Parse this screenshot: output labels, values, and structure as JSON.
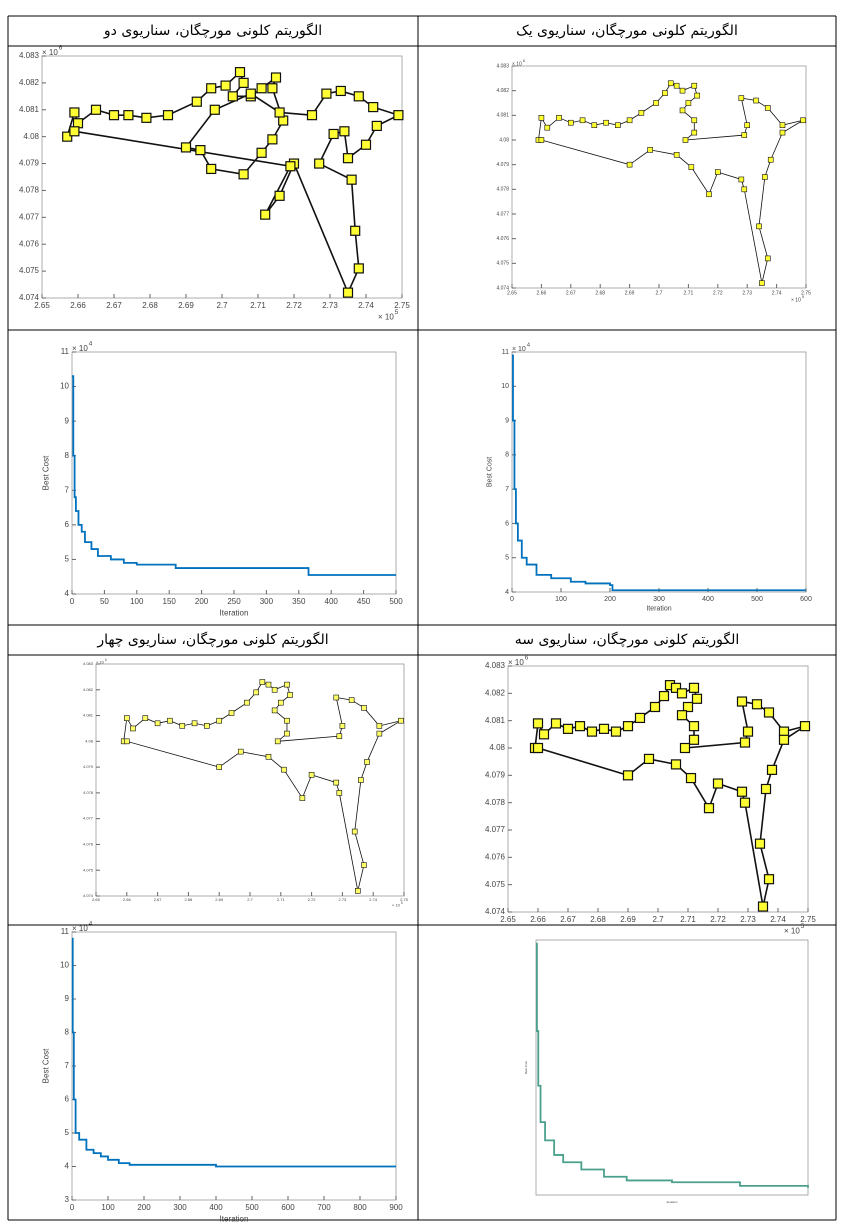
{
  "headers": [
    "الگوریتم کلونی مورچگان، سناریوی یک",
    "الگوریتم کلونی مورچگان، سناریوی دو",
    "الگوریتم کلونی مورچگان، سناریوی سه",
    "الگوریتم کلونی مورچگان، سناریوی چهار"
  ],
  "chart_data": [
    {
      "type": "scatter",
      "connected": true,
      "color": "#ffff33",
      "x": [
        2.659,
        2.66,
        2.662,
        2.666,
        2.67,
        2.674,
        2.678,
        2.682,
        2.686,
        2.69,
        2.694,
        2.699,
        2.702,
        2.704,
        2.706,
        2.708,
        2.712,
        2.713,
        2.71,
        2.708,
        2.712,
        2.712,
        2.709,
        2.729,
        2.73,
        2.728,
        2.733,
        2.737,
        2.742,
        2.749,
        2.742,
        2.738,
        2.736,
        2.734,
        2.737,
        2.735,
        2.729,
        2.728,
        2.72,
        2.717,
        2.711,
        2.706,
        2.697,
        2.69,
        2.66
      ],
      "values": [
        4.08,
        4.0809,
        4.0805,
        4.0809,
        4.0807,
        4.0808,
        4.0806,
        4.0807,
        4.0806,
        4.0808,
        4.0811,
        4.0815,
        4.0819,
        4.0823,
        4.0822,
        4.082,
        4.0822,
        4.0818,
        4.0815,
        4.0812,
        4.0808,
        4.0803,
        4.08,
        4.0802,
        4.0806,
        4.0817,
        4.0816,
        4.0813,
        4.0806,
        4.0808,
        4.0803,
        4.0792,
        4.0785,
        4.0765,
        4.0752,
        4.0742,
        4.078,
        4.0784,
        4.0787,
        4.0778,
        4.0789,
        4.0794,
        4.0796,
        4.079,
        4.08
      ],
      "xlim": [
        2.65,
        2.75
      ],
      "ylim": [
        4.074,
        4.083
      ],
      "xticks": [
        2.65,
        2.66,
        2.67,
        2.68,
        2.69,
        2.7,
        2.71,
        2.72,
        2.73,
        2.74,
        2.75
      ],
      "yticks": [
        4.074,
        4.075,
        4.076,
        4.077,
        4.078,
        4.079,
        4.08,
        4.081,
        4.082,
        4.083
      ],
      "x_scale_base": "× 10",
      "x_scale_power": "5",
      "y_scale_base": "× 10",
      "y_scale_power": "6"
    },
    {
      "type": "scatter",
      "connected": true,
      "color": "#ffff33",
      "x": [
        2.657,
        2.659,
        2.66,
        2.665,
        2.67,
        2.674,
        2.679,
        2.685,
        2.693,
        2.697,
        2.701,
        2.705,
        2.706,
        2.703,
        2.708,
        2.711,
        2.715,
        2.714,
        2.717,
        2.714,
        2.711,
        2.706,
        2.697,
        2.694,
        2.69,
        2.698,
        2.708,
        2.716,
        2.725,
        2.729,
        2.733,
        2.738,
        2.742,
        2.749,
        2.743,
        2.74,
        2.735,
        2.734,
        2.731,
        2.727,
        2.736,
        2.737,
        2.738,
        2.735,
        2.72,
        2.716,
        2.712,
        2.719,
        2.659
      ],
      "values": [
        4.08,
        4.0809,
        4.0805,
        4.081,
        4.0808,
        4.0808,
        4.0807,
        4.0808,
        4.0813,
        4.0818,
        4.0819,
        4.0824,
        4.082,
        4.0815,
        4.0815,
        4.0818,
        4.0822,
        4.0818,
        4.0806,
        4.0799,
        4.0794,
        4.0786,
        4.0788,
        4.0795,
        4.0796,
        4.081,
        4.0816,
        4.0809,
        4.0808,
        4.0816,
        4.0817,
        4.0815,
        4.0811,
        4.0808,
        4.0804,
        4.0797,
        4.0792,
        4.0802,
        4.0801,
        4.079,
        4.0784,
        4.0765,
        4.0751,
        4.0742,
        4.079,
        4.0778,
        4.0771,
        4.0789,
        4.0802
      ],
      "xlim": [
        2.65,
        2.75
      ],
      "ylim": [
        4.074,
        4.083
      ],
      "xticks": [
        2.65,
        2.66,
        2.67,
        2.68,
        2.69,
        2.7,
        2.71,
        2.72,
        2.73,
        2.74,
        2.75
      ],
      "yticks": [
        4.074,
        4.075,
        4.076,
        4.077,
        4.078,
        4.079,
        4.08,
        4.081,
        4.082,
        4.083
      ],
      "x_scale_base": "× 10",
      "x_scale_power": "5",
      "y_scale_base": "× 10",
      "y_scale_power": "6"
    },
    {
      "type": "line",
      "color": "#0072bd",
      "x_label": "Iteration",
      "y_label": "Best Cost",
      "x": [
        0,
        2,
        5,
        8,
        12,
        20,
        30,
        50,
        80,
        120,
        150,
        200,
        205,
        600
      ],
      "values": [
        10.9,
        9,
        7,
        6,
        5.5,
        5,
        4.8,
        4.5,
        4.4,
        4.3,
        4.25,
        4.2,
        4.05,
        4.05
      ],
      "xlim": [
        0,
        600
      ],
      "ylim": [
        4,
        11
      ],
      "xticks": [
        0,
        100,
        200,
        300,
        400,
        500,
        600
      ],
      "yticks": [
        4,
        5,
        6,
        7,
        8,
        9,
        10,
        11
      ],
      "y_scale_base": "× 10",
      "y_scale_power": "4"
    },
    {
      "type": "line",
      "color": "#0072bd",
      "x_label": "Iteration",
      "y_label": "Best Cost",
      "x": [
        0,
        2,
        4,
        6,
        10,
        15,
        20,
        30,
        40,
        60,
        80,
        100,
        160,
        360,
        365,
        500
      ],
      "values": [
        10.3,
        8,
        6.8,
        6.4,
        6.0,
        5.8,
        5.5,
        5.3,
        5.1,
        5.0,
        4.9,
        4.85,
        4.75,
        4.75,
        4.55,
        4.55
      ],
      "xlim": [
        0,
        500
      ],
      "ylim": [
        4,
        11
      ],
      "xticks": [
        0,
        50,
        100,
        150,
        200,
        250,
        300,
        350,
        400,
        450,
        500
      ],
      "yticks": [
        4,
        5,
        6,
        7,
        8,
        9,
        10,
        11
      ],
      "y_scale_base": "× 10",
      "y_scale_power": "4"
    },
    {
      "type": "scatter",
      "connected": true,
      "color": "#ffff33",
      "x": [
        2.659,
        2.66,
        2.662,
        2.666,
        2.67,
        2.674,
        2.678,
        2.682,
        2.686,
        2.69,
        2.694,
        2.699,
        2.702,
        2.704,
        2.706,
        2.708,
        2.712,
        2.713,
        2.71,
        2.708,
        2.712,
        2.712,
        2.709,
        2.729,
        2.73,
        2.728,
        2.733,
        2.737,
        2.742,
        2.749,
        2.742,
        2.738,
        2.736,
        2.734,
        2.737,
        2.735,
        2.729,
        2.728,
        2.72,
        2.717,
        2.711,
        2.706,
        2.697,
        2.69,
        2.66
      ],
      "values": [
        4.08,
        4.0809,
        4.0805,
        4.0809,
        4.0807,
        4.0808,
        4.0806,
        4.0807,
        4.0806,
        4.0808,
        4.0811,
        4.0815,
        4.0819,
        4.0823,
        4.0822,
        4.082,
        4.0822,
        4.0818,
        4.0815,
        4.0812,
        4.0808,
        4.0803,
        4.08,
        4.0802,
        4.0806,
        4.0817,
        4.0816,
        4.0813,
        4.0806,
        4.0808,
        4.0803,
        4.0792,
        4.0785,
        4.0765,
        4.0752,
        4.0742,
        4.078,
        4.0784,
        4.0787,
        4.0778,
        4.0789,
        4.0794,
        4.0796,
        4.079,
        4.08
      ],
      "xlim": [
        2.65,
        2.75
      ],
      "ylim": [
        4.074,
        4.083
      ],
      "xticks": [
        2.65,
        2.66,
        2.67,
        2.68,
        2.69,
        2.7,
        2.71,
        2.72,
        2.73,
        2.74,
        2.75
      ],
      "yticks": [
        4.074,
        4.075,
        4.076,
        4.077,
        4.078,
        4.079,
        4.08,
        4.081,
        4.082,
        4.083
      ],
      "x_scale_base": "× 10",
      "x_scale_power": "5",
      "y_scale_base": "× 10",
      "y_scale_power": "6"
    },
    {
      "type": "scatter",
      "connected": true,
      "color": "#ffff66",
      "x": [
        2.659,
        2.66,
        2.662,
        2.666,
        2.67,
        2.674,
        2.678,
        2.682,
        2.686,
        2.69,
        2.694,
        2.699,
        2.702,
        2.704,
        2.706,
        2.708,
        2.712,
        2.713,
        2.71,
        2.708,
        2.712,
        2.712,
        2.709,
        2.729,
        2.73,
        2.728,
        2.733,
        2.737,
        2.742,
        2.749,
        2.742,
        2.738,
        2.736,
        2.734,
        2.737,
        2.735,
        2.729,
        2.728,
        2.72,
        2.717,
        2.711,
        2.706,
        2.697,
        2.69,
        2.66
      ],
      "values": [
        4.08,
        4.0809,
        4.0805,
        4.0809,
        4.0807,
        4.0808,
        4.0806,
        4.0807,
        4.0806,
        4.0808,
        4.0811,
        4.0815,
        4.0819,
        4.0823,
        4.0822,
        4.082,
        4.0822,
        4.0818,
        4.0815,
        4.0812,
        4.0808,
        4.0803,
        4.08,
        4.0802,
        4.0806,
        4.0817,
        4.0816,
        4.0813,
        4.0806,
        4.0808,
        4.0803,
        4.0792,
        4.0785,
        4.0765,
        4.0752,
        4.0742,
        4.078,
        4.0784,
        4.0787,
        4.0778,
        4.0789,
        4.0794,
        4.0796,
        4.079,
        4.08
      ],
      "xlim": [
        2.65,
        2.75
      ],
      "ylim": [
        4.074,
        4.083
      ],
      "xticks": [
        2.65,
        2.66,
        2.67,
        2.68,
        2.69,
        2.7,
        2.71,
        2.72,
        2.73,
        2.74,
        2.75
      ],
      "yticks": [
        4.074,
        4.075,
        4.076,
        4.077,
        4.078,
        4.079,
        4.08,
        4.081,
        4.082,
        4.083
      ],
      "x_scale_base": "× 10",
      "x_scale_power": "5",
      "y_scale_base": "× 10",
      "y_scale_power": "6"
    },
    {
      "type": "line",
      "color": "#4aa08c",
      "x_label": "Iteration",
      "y_label": "Best Cost",
      "x": [
        0,
        2,
        5,
        10,
        20,
        40,
        60,
        100,
        150,
        200,
        300,
        450,
        600
      ],
      "values": [
        10.9,
        8.5,
        7,
        6,
        5.5,
        5.1,
        4.9,
        4.7,
        4.5,
        4.4,
        4.35,
        4.25,
        4.2
      ],
      "xlim": [
        0,
        600
      ],
      "ylim": [
        4,
        11
      ]
    },
    {
      "type": "line",
      "color": "#0072bd",
      "x_label": "Iteration",
      "y_label": "Best Cost",
      "x": [
        0,
        2,
        5,
        10,
        20,
        40,
        60,
        80,
        100,
        130,
        160,
        400,
        900
      ],
      "values": [
        10.8,
        8,
        6,
        5,
        4.8,
        4.5,
        4.4,
        4.3,
        4.2,
        4.1,
        4.05,
        4.0,
        4.0
      ],
      "xlim": [
        0,
        900
      ],
      "ylim": [
        3,
        11
      ],
      "xticks": [
        0,
        100,
        200,
        300,
        400,
        500,
        600,
        700,
        800,
        900
      ],
      "yticks": [
        3,
        4,
        5,
        6,
        7,
        8,
        9,
        10,
        11
      ],
      "y_scale_base": "× 10",
      "y_scale_power": "4"
    }
  ]
}
